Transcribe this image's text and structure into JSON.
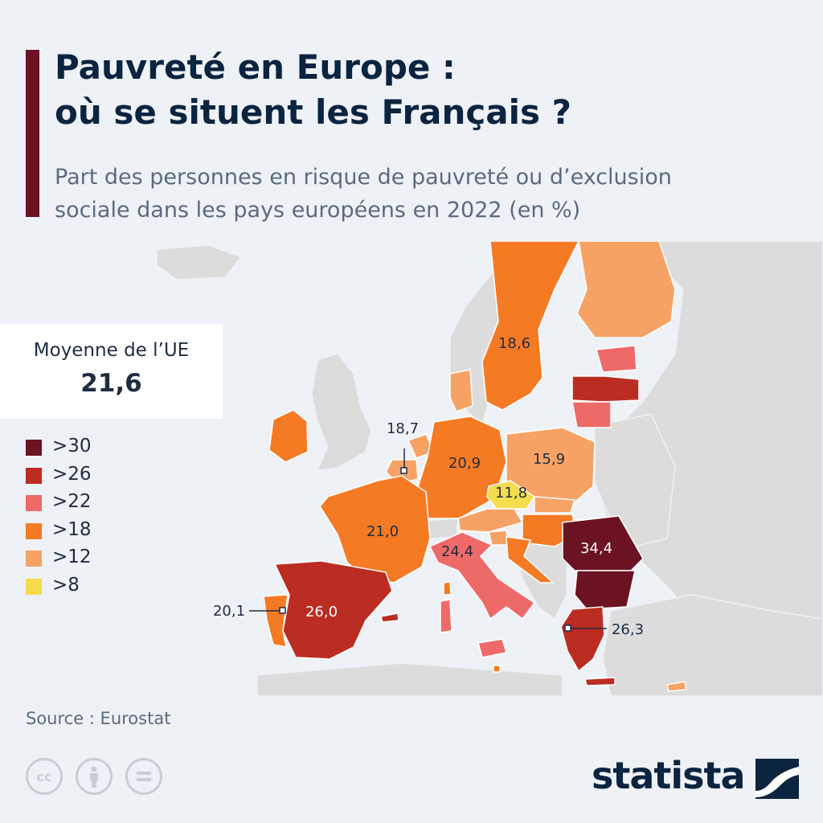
{
  "title_line1": "Pauvreté en Europe :",
  "title_line2": "où se situent les Français ?",
  "subtitle_line1": "Part des personnes en risque de pauvreté ou d’exclusion",
  "subtitle_line2": "sociale dans les pays européens en 2022 (en %)",
  "eu_average": {
    "label": "Moyenne de l’UE",
    "value": "21,6"
  },
  "legend": [
    {
      "label": ">30",
      "color": "#6b1223"
    },
    {
      "label": ">26",
      "color": "#bb2d22"
    },
    {
      "label": ">22",
      "color": "#ee6a69"
    },
    {
      "label": ">18",
      "color": "#f57a24"
    },
    {
      "label": ">12",
      "color": "#f6a265"
    },
    {
      "label": ">8",
      "color": "#f4dc4c"
    }
  ],
  "country_labels": [
    {
      "value": "18,6",
      "text_color": "#1e2d42"
    },
    {
      "value": "18,7",
      "text_color": "#1e2d42"
    },
    {
      "value": "20,9",
      "text_color": "#1e2d42"
    },
    {
      "value": "15,9",
      "text_color": "#1e2d42"
    },
    {
      "value": "11,8",
      "text_color": "#1e2d42"
    },
    {
      "value": "21,0",
      "text_color": "#1e2d42"
    },
    {
      "value": "24,4",
      "text_color": "#1e2d42"
    },
    {
      "value": "34,4",
      "text_color": "#ffffff"
    },
    {
      "value": "20,1",
      "text_color": "#1e2d42"
    },
    {
      "value": "26,0",
      "text_color": "#ffffff"
    },
    {
      "value": "26,3",
      "text_color": "#1e2d42"
    }
  ],
  "colors": {
    "accent": "#6b1223",
    "no_data": "#dcdcdc"
  },
  "source": "Source : Eurostat",
  "brand": "statista"
}
